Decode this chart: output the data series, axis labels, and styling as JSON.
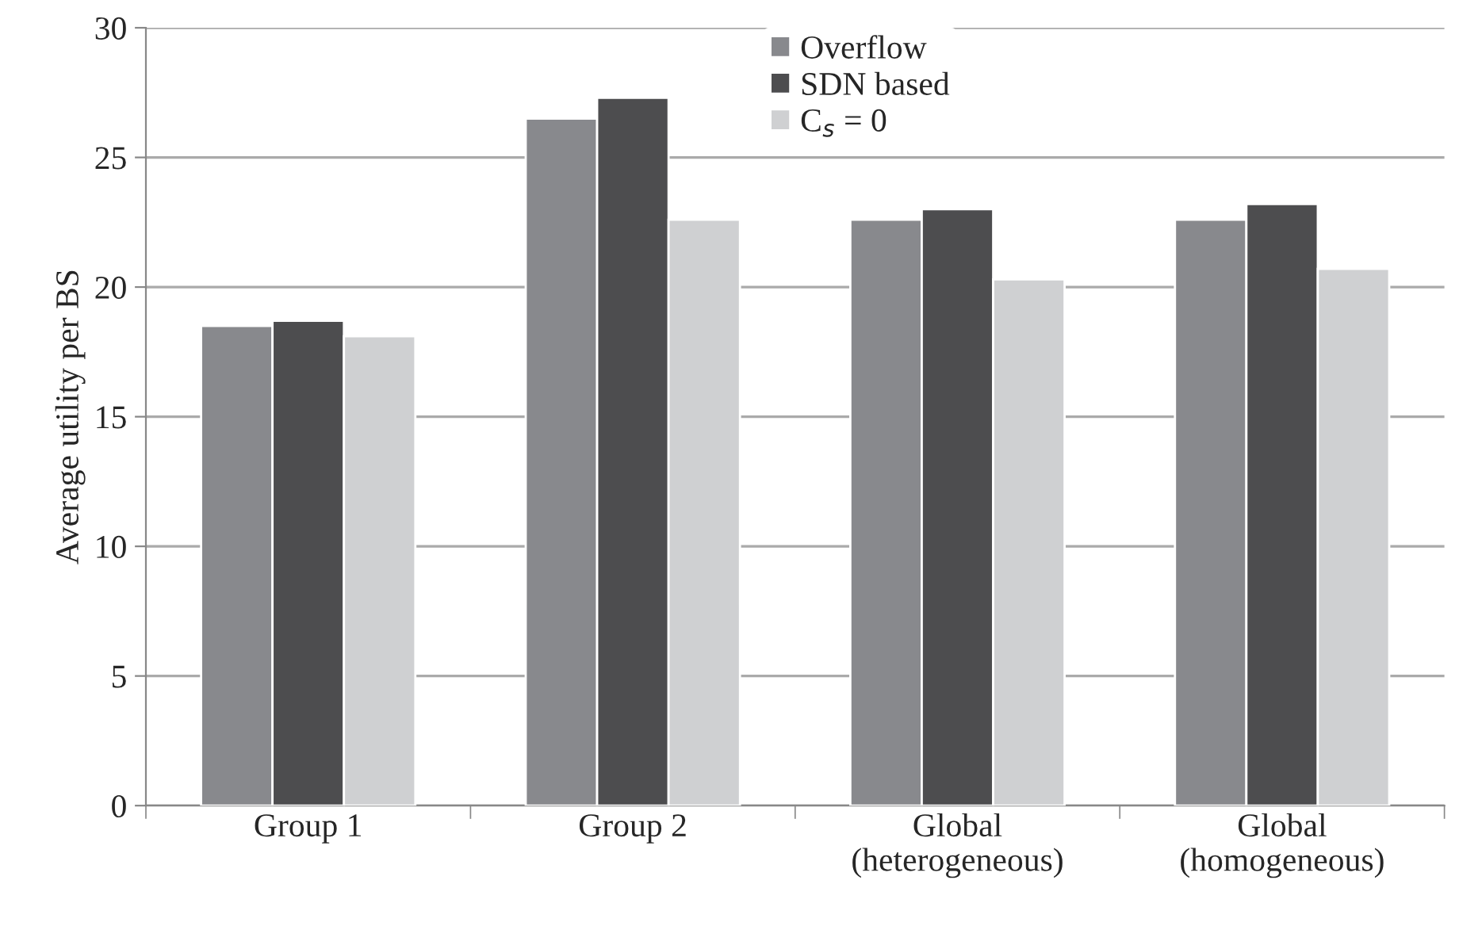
{
  "chart_data": {
    "type": "bar",
    "ylabel": "Average utility per BS",
    "categories": [
      "Group 1",
      "Group 2",
      "Global\n(heterogeneous)",
      "Global\n(homogeneous)"
    ],
    "series": [
      {
        "name": "Overflow",
        "color": "#88898d",
        "values": [
          18.5,
          26.5,
          22.6,
          22.6
        ]
      },
      {
        "name": "SDN based",
        "color": "#4d4d4f",
        "values": [
          18.7,
          27.3,
          23.0,
          23.2
        ]
      },
      {
        "name": "C$_{s}$ = 0",
        "color": "#cfd0d2",
        "values": [
          18.1,
          22.6,
          20.3,
          20.7
        ]
      }
    ],
    "ylim": [
      0,
      30
    ],
    "yticks": [
      0,
      5,
      10,
      15,
      20,
      25,
      30
    ],
    "grid": "y",
    "legend": "top"
  }
}
